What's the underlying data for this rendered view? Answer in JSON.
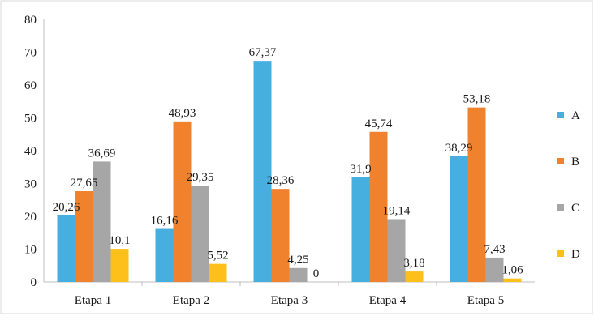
{
  "chart_data": {
    "type": "bar",
    "categories": [
      "Etapa 1",
      "Etapa 2",
      "Etapa 3",
      "Etapa 4",
      "Etapa 5"
    ],
    "series": [
      {
        "name": "A",
        "color": "#46afe0",
        "values": [
          20.26,
          16.16,
          67.37,
          31.9,
          38.29
        ],
        "labels": [
          "20,26",
          "16,16",
          "67,37",
          "31,9",
          "38,29"
        ]
      },
      {
        "name": "B",
        "color": "#f0822e",
        "values": [
          27.65,
          48.93,
          28.36,
          45.74,
          53.18
        ],
        "labels": [
          "27,65",
          "48,93",
          "28,36",
          "45,74",
          "53,18"
        ]
      },
      {
        "name": "C",
        "color": "#a6a6a6",
        "values": [
          36.69,
          29.35,
          4.25,
          19.14,
          7.43
        ],
        "labels": [
          "36,69",
          "29,35",
          "4,25",
          "19,14",
          "7,43"
        ]
      },
      {
        "name": "D",
        "color": "#fdbf1a",
        "values": [
          10.1,
          5.52,
          0,
          3.18,
          1.06
        ],
        "labels": [
          "10,1",
          "5,52",
          "0",
          "3,18",
          "1,06"
        ]
      }
    ],
    "yticks": [
      "0",
      "10",
      "20",
      "30",
      "40",
      "50",
      "60",
      "70",
      "80"
    ],
    "ylim": [
      0,
      80
    ],
    "grid": false,
    "legend_position": "right"
  }
}
